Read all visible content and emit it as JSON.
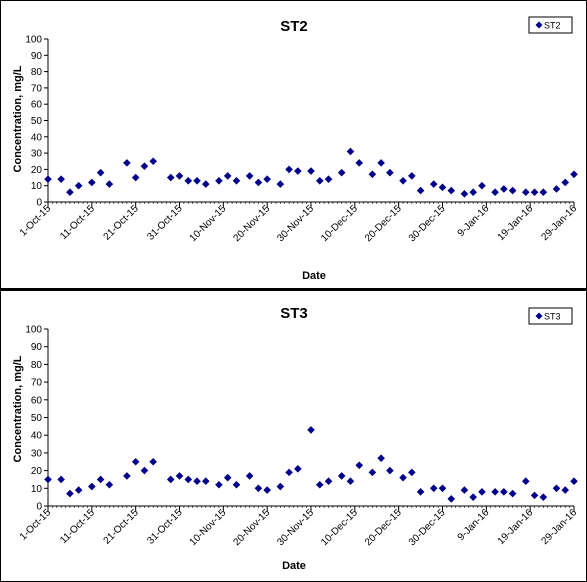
{
  "chart_data": [
    {
      "type": "scatter",
      "title": "ST2",
      "xlabel": "Date",
      "ylabel": "Concentration, mg/L",
      "ylim": [
        0,
        100
      ],
      "yticks": [
        "0",
        "10",
        "20",
        "30",
        "40",
        "50",
        "60",
        "70",
        "80",
        "90",
        "100"
      ],
      "xlim": [
        "2015-10-01",
        "2016-01-29"
      ],
      "xticks": [
        "1-Oct-15",
        "11-Oct-15",
        "21-Oct-15",
        "31-Oct-15",
        "10-Nov-15",
        "20-Nov-15",
        "30-Nov-15",
        "10-Dec-15",
        "20-Dec-15",
        "30-Dec-15",
        "9-Jan-16",
        "19-Jan-16",
        "29-Jan-16"
      ],
      "grid": false,
      "legend": "top-right",
      "marker_color": "#00008b",
      "series": [
        {
          "name": "ST2",
          "x": [
            "2015-10-01",
            "2015-10-04",
            "2015-10-06",
            "2015-10-08",
            "2015-10-11",
            "2015-10-13",
            "2015-10-15",
            "2015-10-19",
            "2015-10-21",
            "2015-10-23",
            "2015-10-25",
            "2015-10-29",
            "2015-10-31",
            "2015-11-02",
            "2015-11-04",
            "2015-11-06",
            "2015-11-09",
            "2015-11-11",
            "2015-11-13",
            "2015-11-16",
            "2015-11-18",
            "2015-11-20",
            "2015-11-23",
            "2015-11-25",
            "2015-11-27",
            "2015-11-30",
            "2015-12-02",
            "2015-12-04",
            "2015-12-07",
            "2015-12-09",
            "2015-12-11",
            "2015-12-14",
            "2015-12-16",
            "2015-12-18",
            "2015-12-21",
            "2015-12-23",
            "2015-12-25",
            "2015-12-28",
            "2015-12-30",
            "2016-01-01",
            "2016-01-04",
            "2016-01-06",
            "2016-01-08",
            "2016-01-11",
            "2016-01-13",
            "2016-01-15",
            "2016-01-18",
            "2016-01-20",
            "2016-01-22",
            "2016-01-25",
            "2016-01-27",
            "2016-01-29"
          ],
          "y": [
            14,
            14,
            6,
            10,
            12,
            18,
            11,
            24,
            15,
            22,
            25,
            15,
            16,
            13,
            13,
            11,
            13,
            16,
            13,
            16,
            12,
            14,
            11,
            20,
            19,
            19,
            13,
            14,
            18,
            31,
            24,
            17,
            24,
            18,
            13,
            16,
            7,
            11,
            9,
            7,
            5,
            6,
            10,
            6,
            8,
            7,
            6,
            6,
            6,
            8,
            12,
            17
          ]
        }
      ]
    },
    {
      "type": "scatter",
      "title": "ST3",
      "xlabel": "Date",
      "ylabel": "Concentration, mg/L",
      "ylim": [
        0,
        100
      ],
      "yticks": [
        "0",
        "10",
        "20",
        "30",
        "40",
        "50",
        "60",
        "70",
        "80",
        "90",
        "100"
      ],
      "xlim": [
        "2015-10-01",
        "2016-01-29"
      ],
      "xticks": [
        "1-Oct-15",
        "11-Oct-15",
        "21-Oct-15",
        "31-Oct-15",
        "10-Nov-15",
        "20-Nov-15",
        "30-Nov-15",
        "10-Dec-15",
        "20-Dec-15",
        "30-Dec-15",
        "9-Jan-16",
        "19-Jan-16",
        "29-Jan-16"
      ],
      "grid": false,
      "legend": "top-right",
      "marker_color": "#00008b",
      "series": [
        {
          "name": "ST3",
          "x": [
            "2015-10-01",
            "2015-10-04",
            "2015-10-06",
            "2015-10-08",
            "2015-10-11",
            "2015-10-13",
            "2015-10-15",
            "2015-10-19",
            "2015-10-21",
            "2015-10-23",
            "2015-10-25",
            "2015-10-29",
            "2015-10-31",
            "2015-11-02",
            "2015-11-04",
            "2015-11-06",
            "2015-11-09",
            "2015-11-11",
            "2015-11-13",
            "2015-11-16",
            "2015-11-18",
            "2015-11-20",
            "2015-11-23",
            "2015-11-25",
            "2015-11-27",
            "2015-11-30",
            "2015-12-02",
            "2015-12-04",
            "2015-12-07",
            "2015-12-09",
            "2015-12-11",
            "2015-12-14",
            "2015-12-16",
            "2015-12-18",
            "2015-12-21",
            "2015-12-23",
            "2015-12-25",
            "2015-12-28",
            "2015-12-30",
            "2016-01-01",
            "2016-01-04",
            "2016-01-06",
            "2016-01-08",
            "2016-01-11",
            "2016-01-13",
            "2016-01-15",
            "2016-01-18",
            "2016-01-20",
            "2016-01-22",
            "2016-01-25",
            "2016-01-27",
            "2016-01-29"
          ],
          "y": [
            15,
            15,
            7,
            9,
            11,
            15,
            12,
            17,
            25,
            20,
            25,
            15,
            17,
            15,
            14,
            14,
            12,
            16,
            12,
            17,
            10,
            9,
            11,
            19,
            21,
            43,
            12,
            14,
            17,
            14,
            23,
            19,
            27,
            20,
            16,
            19,
            8,
            10,
            10,
            4,
            9,
            5,
            8,
            8,
            8,
            7,
            14,
            6,
            5,
            10,
            9,
            14
          ]
        }
      ]
    }
  ]
}
